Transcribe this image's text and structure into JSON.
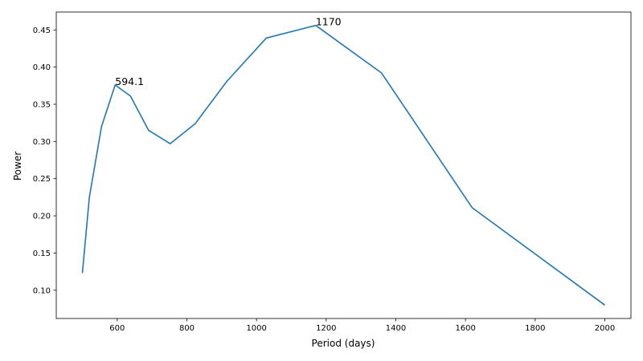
{
  "chart_data": {
    "type": "line",
    "title": "",
    "xlabel": "Period (days)",
    "ylabel": "Power",
    "xlim": [
      425,
      2075
    ],
    "ylim": [
      0.062,
      0.474
    ],
    "xticks": [
      600,
      800,
      1000,
      1200,
      1400,
      1600,
      1800,
      2000
    ],
    "yticks": [
      0.1,
      0.15,
      0.2,
      0.25,
      0.3,
      0.35,
      0.4,
      0.45
    ],
    "grid": false,
    "line_color": "#1f77b4",
    "series": [
      {
        "x": [
          500,
          520,
          555,
          594.1,
          638,
          690,
          752,
          824,
          915,
          1028,
          1170,
          1359,
          1619,
          2000
        ],
        "y": [
          0.123,
          0.225,
          0.32,
          0.376,
          0.361,
          0.315,
          0.297,
          0.324,
          0.381,
          0.439,
          0.456,
          0.392,
          0.211,
          0.08
        ]
      }
    ],
    "annotations": [
      {
        "text": "594.1",
        "x": 594.1,
        "y": 0.376
      },
      {
        "text": "1170",
        "x": 1170,
        "y": 0.456
      }
    ]
  }
}
